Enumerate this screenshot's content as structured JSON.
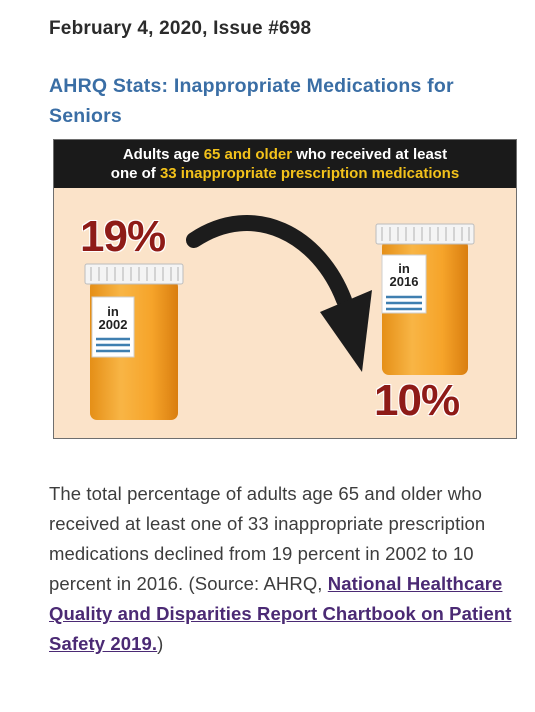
{
  "issue": {
    "date_line": "February 4, 2020, Issue #698"
  },
  "headline": "AHRQ Stats: Inappropriate Medications for Seniors",
  "infographic": {
    "banner": {
      "part1": "Adults age ",
      "highlight1": "65 and older",
      "part2": " who received at least",
      "part3": "one of ",
      "highlight2": "33 inappropriate prescription medications"
    },
    "pct_2002": "19%",
    "pct_2016": "10%",
    "label_2002_in": "in",
    "label_2002_year": "2002",
    "label_2016_in": "in",
    "label_2016_year": "2016",
    "icons": [
      "pill-bottle-icon",
      "curved-arrow-down-icon"
    ],
    "colors": {
      "background": "#fbe3c9",
      "banner": "#1a1a1a",
      "highlight": "#f3c21b",
      "percent": "#8e1b17",
      "bottle": "#f5a623"
    }
  },
  "body": {
    "text": "The total percentage of adults age 65 and older who received at least one of 33 inappropriate prescription medications declined from 19 percent in 2002 to 10 percent in 2016. (Source: AHRQ, ",
    "link_text": "National Healthcare Quality and Disparities Report Chartbook on Patient Safety 2019.",
    "closing": ")"
  }
}
